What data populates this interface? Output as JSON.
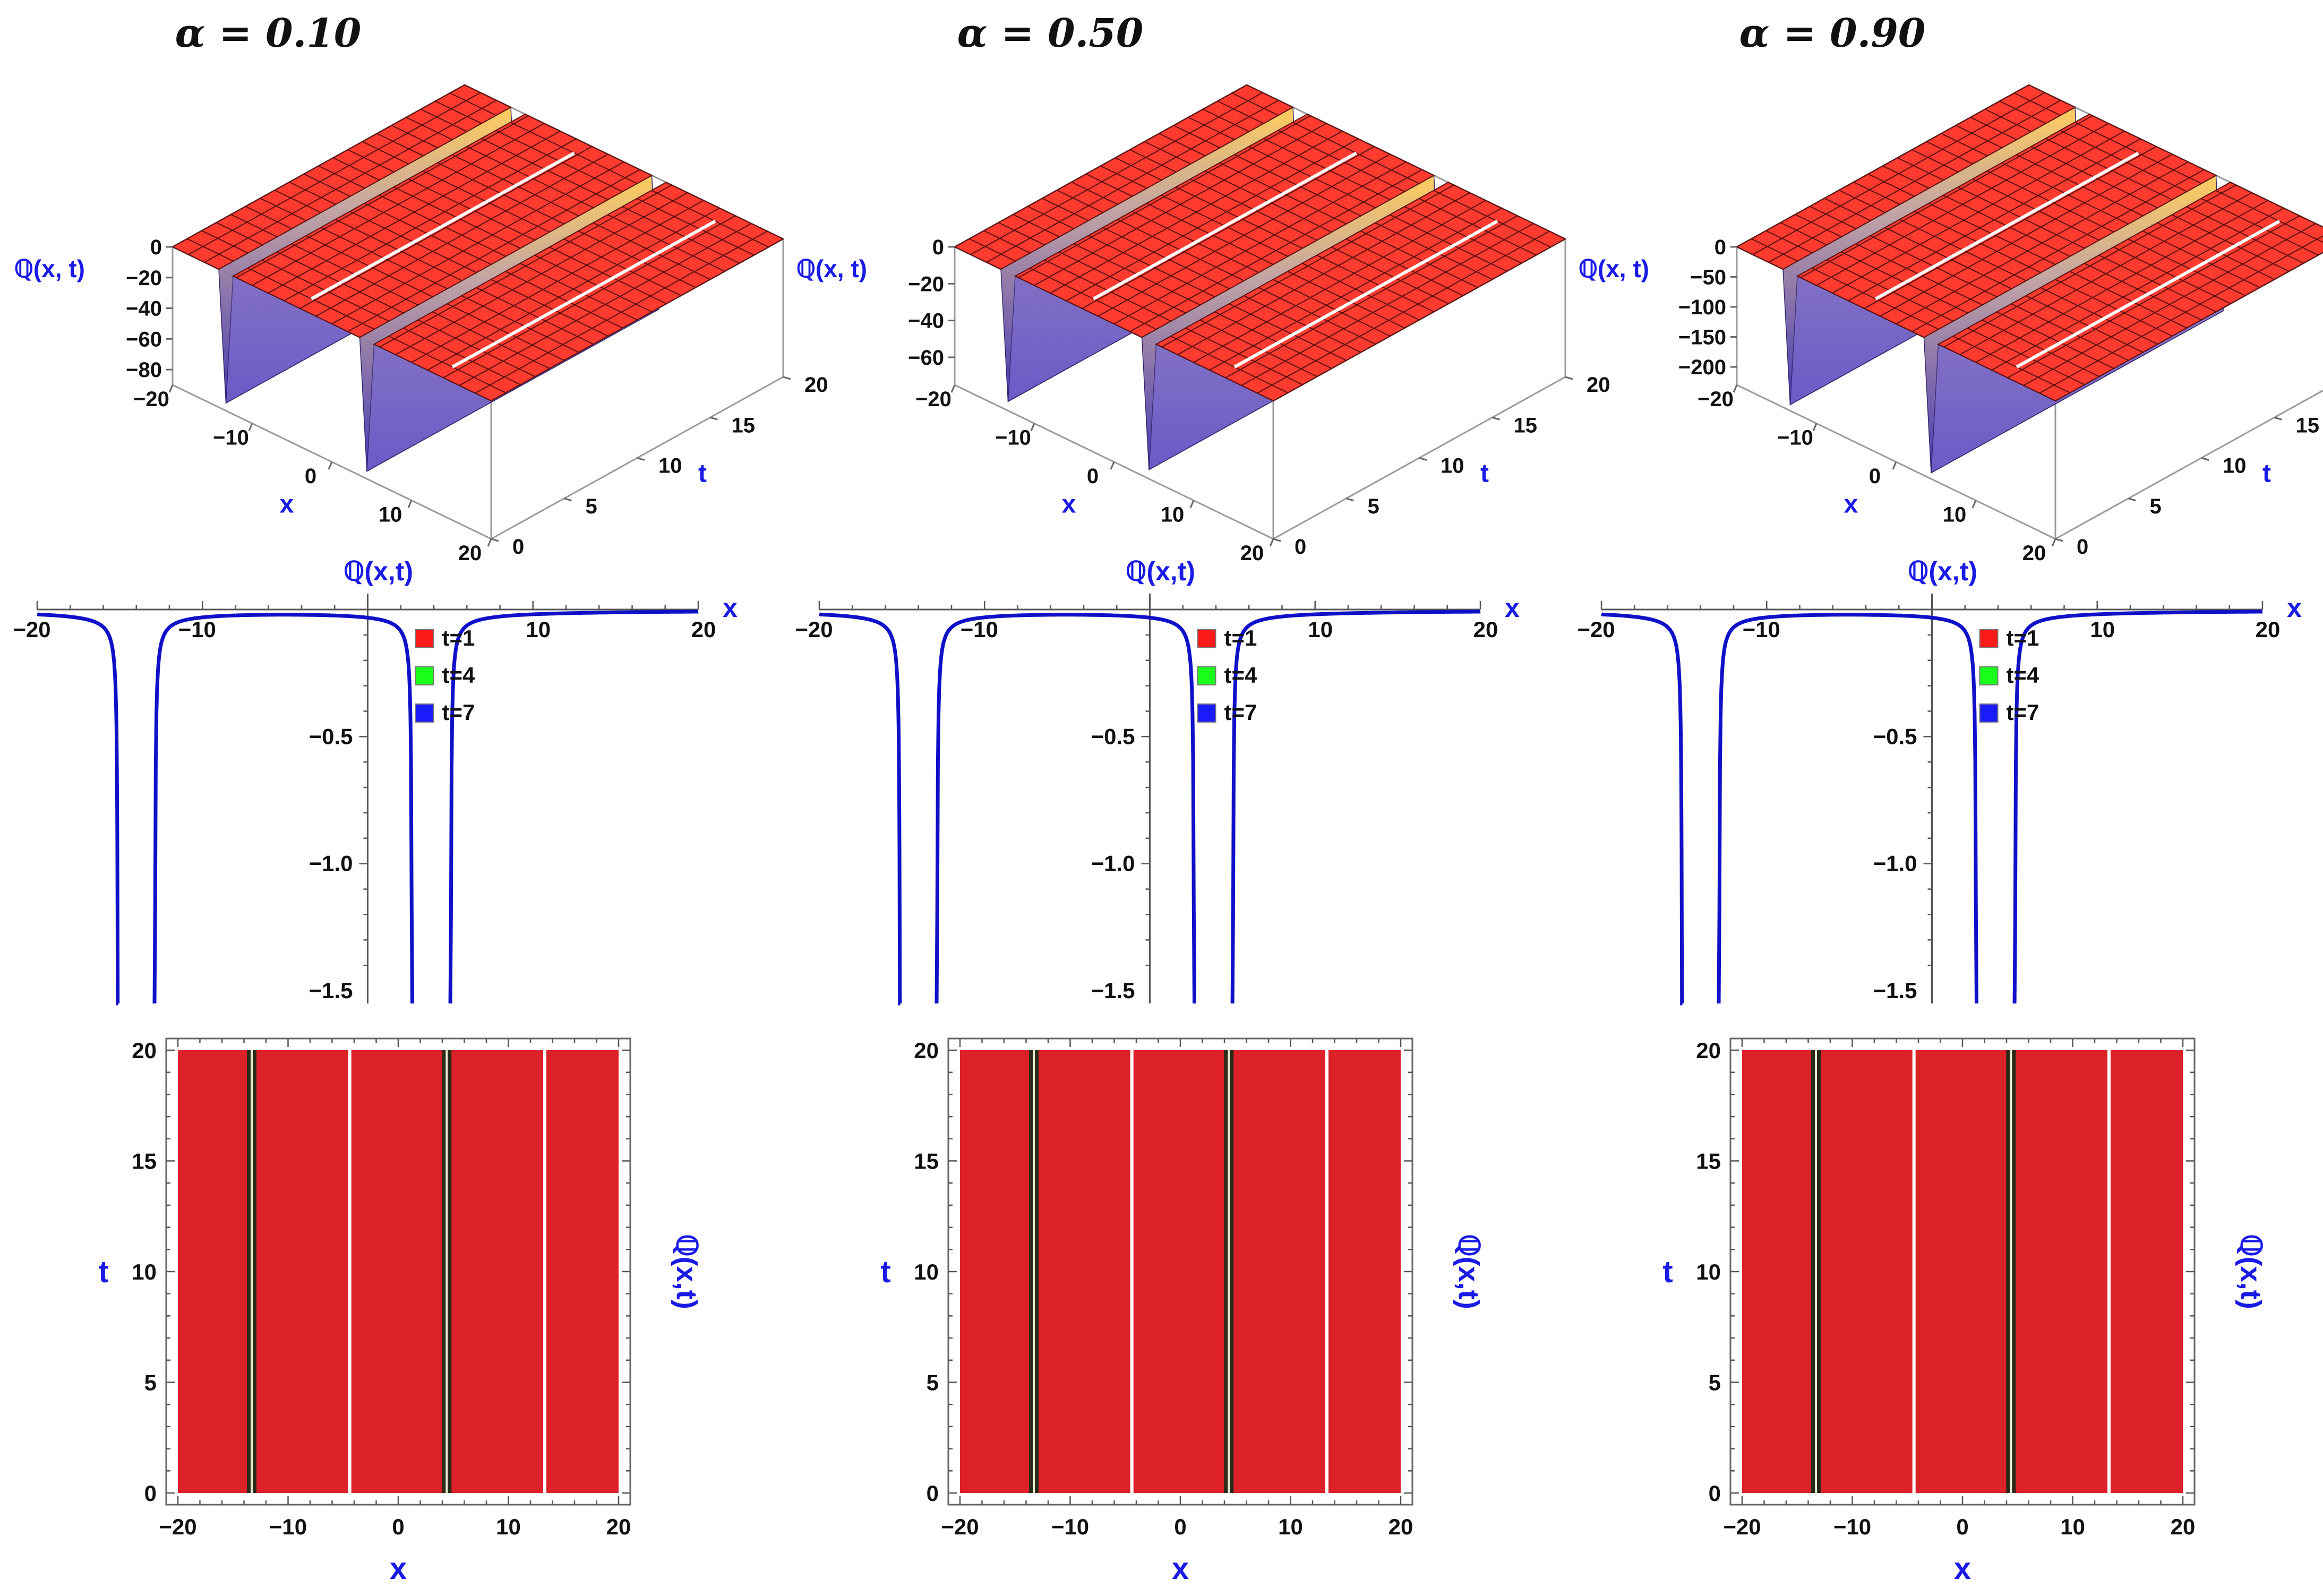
{
  "panel_titles": [
    "α = 0.10",
    "α = 0.50",
    "α = 0.90"
  ],
  "labels": {
    "x": "x",
    "t": "t",
    "q3d": "ℚ(x, t)",
    "q2d": "ℚ(x,t)"
  },
  "legend": [
    "t=1",
    "t=4",
    "t=7"
  ],
  "colors": {
    "surface": "#ff3b30",
    "mesh": "#5a1010",
    "density": "#dc2128",
    "curve": "#1010c8",
    "label_blue": "#1a1ae6",
    "legend": [
      "#ff1a1a",
      "#1aff1a",
      "#1a1aff"
    ]
  },
  "chart_data": [
    {
      "type": "surface3d",
      "alpha": 0.1,
      "title": "α = 0.10",
      "xlabel": "x",
      "ylabel": "t",
      "zlabel": "ℚ(x, t)",
      "xlim": [
        -20,
        20
      ],
      "ylim": [
        0,
        20
      ],
      "zlim": [
        -90,
        0
      ],
      "x_ticks": [
        -20,
        -10,
        0,
        10,
        20
      ],
      "t_ticks": [
        0,
        5,
        10,
        15,
        20
      ],
      "z_ticks": [
        0,
        -20,
        -40,
        -60,
        -80
      ],
      "troughs_x": [
        -13.3,
        4.4
      ],
      "z_min": -85
    },
    {
      "type": "surface3d",
      "alpha": 0.5,
      "title": "α = 0.50",
      "xlabel": "x",
      "ylabel": "t",
      "zlabel": "ℚ(x, t)",
      "xlim": [
        -20,
        20
      ],
      "ylim": [
        0,
        20
      ],
      "zlim": [
        -75,
        0
      ],
      "x_ticks": [
        -20,
        -10,
        0,
        10,
        20
      ],
      "t_ticks": [
        0,
        5,
        10,
        15,
        20
      ],
      "z_ticks": [
        0,
        -20,
        -40,
        -60
      ],
      "troughs_x": [
        -13.3,
        4.4
      ],
      "z_min": -70
    },
    {
      "type": "surface3d",
      "alpha": 0.9,
      "title": "α = 0.90",
      "xlabel": "x",
      "ylabel": "t",
      "zlabel": "ℚ(x, t)",
      "xlim": [
        -20,
        20
      ],
      "ylim": [
        0,
        20
      ],
      "zlim": [
        -230,
        0
      ],
      "x_ticks": [
        -20,
        -10,
        0,
        10,
        20
      ],
      "t_ticks": [
        0,
        5,
        10,
        15,
        20
      ],
      "z_ticks": [
        0,
        -50,
        -100,
        -150,
        -200
      ],
      "troughs_x": [
        -13.3,
        4.4
      ],
      "z_min": -220
    },
    {
      "type": "line",
      "alpha": 0.1,
      "xlabel": "x",
      "ylabel": "ℚ(x,t)",
      "xlim": [
        -20,
        20
      ],
      "ylim": [
        -1.55,
        0
      ],
      "x_ticks": [
        -20,
        -10,
        10,
        20
      ],
      "y_ticks": [
        -0.5,
        -1.0,
        -1.5
      ],
      "series": [
        {
          "name": "t=1",
          "singularities": [
            -15.1,
            -12.9,
            2.7,
            5.0
          ]
        },
        {
          "name": "t=4",
          "singularities": [
            -15.1,
            -12.9,
            2.7,
            5.0
          ]
        },
        {
          "name": "t=7",
          "singularities": [
            -15.1,
            -12.9,
            2.7,
            5.0
          ]
        }
      ]
    },
    {
      "type": "line",
      "alpha": 0.5,
      "xlabel": "x",
      "ylabel": "ℚ(x,t)",
      "xlim": [
        -20,
        20
      ],
      "ylim": [
        -1.55,
        0
      ],
      "x_ticks": [
        -20,
        -10,
        10,
        20
      ],
      "y_ticks": [
        -0.5,
        -1.0,
        -1.5
      ],
      "series": [
        {
          "name": "t=1",
          "singularities": [
            -15.1,
            -12.9,
            2.7,
            5.0
          ]
        },
        {
          "name": "t=4",
          "singularities": [
            -15.1,
            -12.9,
            2.7,
            5.0
          ]
        },
        {
          "name": "t=7",
          "singularities": [
            -15.1,
            -12.9,
            2.7,
            5.0
          ]
        }
      ]
    },
    {
      "type": "line",
      "alpha": 0.9,
      "xlabel": "x",
      "ylabel": "ℚ(x,t)",
      "xlim": [
        -20,
        20
      ],
      "ylim": [
        -1.55,
        0
      ],
      "x_ticks": [
        -20,
        -10,
        10,
        20
      ],
      "y_ticks": [
        -0.5,
        -1.0,
        -1.5
      ],
      "series": [
        {
          "name": "t=1",
          "singularities": [
            -15.1,
            -12.9,
            2.7,
            5.0
          ]
        },
        {
          "name": "t=4",
          "singularities": [
            -15.1,
            -12.9,
            2.7,
            5.0
          ]
        },
        {
          "name": "t=7",
          "singularities": [
            -15.1,
            -12.9,
            2.7,
            5.0
          ]
        }
      ]
    },
    {
      "type": "heatmap",
      "alpha": 0.1,
      "xlabel": "x",
      "ylabel": "t",
      "colorlabel": "ℚ(x,t)",
      "xlim": [
        -20,
        20
      ],
      "ylim": [
        0,
        20
      ],
      "x_ticks": [
        -20,
        -10,
        0,
        10,
        20
      ],
      "y_ticks": [
        0,
        5,
        10,
        15,
        20
      ],
      "dark_lines_x": [
        -13.3,
        4.4
      ],
      "white_lines_x": [
        -4.4,
        13.3
      ]
    },
    {
      "type": "heatmap",
      "alpha": 0.5,
      "xlabel": "x",
      "ylabel": "t",
      "colorlabel": "ℚ(x,t)",
      "xlim": [
        -20,
        20
      ],
      "ylim": [
        0,
        20
      ],
      "x_ticks": [
        -20,
        -10,
        0,
        10,
        20
      ],
      "y_ticks": [
        0,
        5,
        10,
        15,
        20
      ],
      "dark_lines_x": [
        -13.3,
        4.4
      ],
      "white_lines_x": [
        -4.4,
        13.3
      ]
    },
    {
      "type": "heatmap",
      "alpha": 0.9,
      "xlabel": "x",
      "ylabel": "t",
      "colorlabel": "ℚ(x,t)",
      "xlim": [
        -20,
        20
      ],
      "ylim": [
        0,
        20
      ],
      "x_ticks": [
        -20,
        -10,
        0,
        10,
        20
      ],
      "y_ticks": [
        0,
        5,
        10,
        15,
        20
      ],
      "dark_lines_x": [
        -13.3,
        4.4
      ],
      "white_lines_x": [
        -4.4,
        13.3
      ]
    }
  ]
}
